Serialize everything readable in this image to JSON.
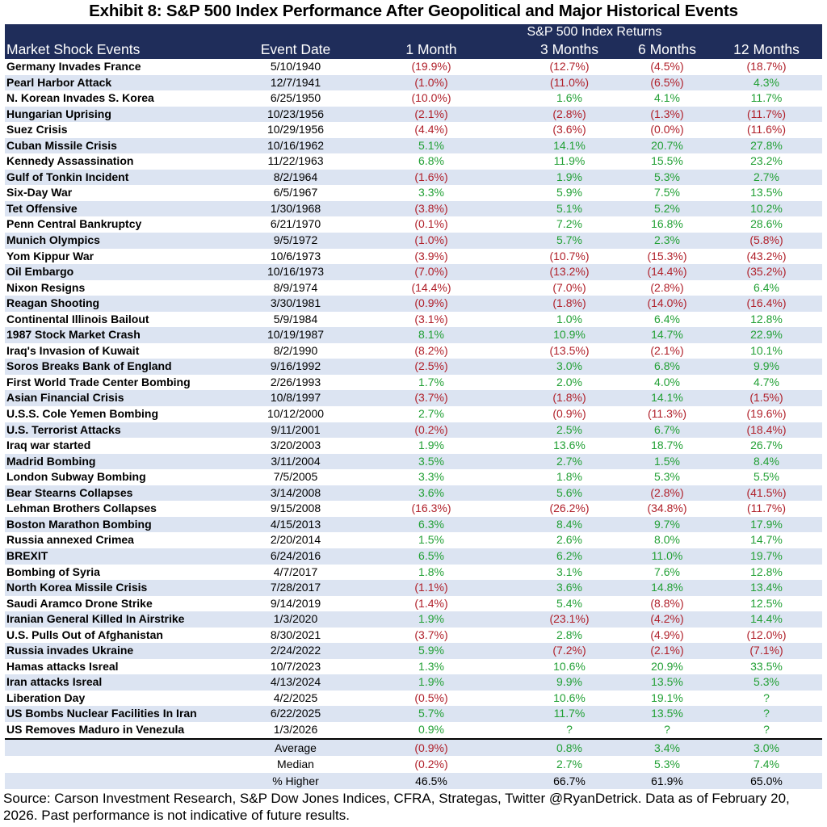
{
  "title": "Exhibit 8: S&P 500 Index Performance After Geopolitical and Major Historical Events",
  "header": {
    "group_label": "S&P 500 Index Returns",
    "columns": [
      "Market Shock Events",
      "Event Date",
      "1 Month",
      "3 Months",
      "6 Months",
      "12 Months"
    ]
  },
  "chart_data": {
    "type": "table",
    "title": "Exhibit 8: S&P 500 Index Performance After Geopolitical and Major Historical Events",
    "columns": [
      "Market Shock Events",
      "Event Date",
      "1 Month",
      "3 Months",
      "6 Months",
      "12 Months"
    ],
    "rows": [
      [
        "Germany Invades France",
        "5/10/1940",
        "(19.9%)",
        "(12.7%)",
        "(4.5%)",
        "(18.7%)"
      ],
      [
        "Pearl Harbor Attack",
        "12/7/1941",
        "(1.0%)",
        "(11.0%)",
        "(6.5%)",
        "4.3%"
      ],
      [
        "N. Korean Invades S. Korea",
        "6/25/1950",
        "(10.0%)",
        "1.6%",
        "4.1%",
        "11.7%"
      ],
      [
        "Hungarian Uprising",
        "10/23/1956",
        "(2.1%)",
        "(2.8%)",
        "(1.3%)",
        "(11.7%)"
      ],
      [
        "Suez Crisis",
        "10/29/1956",
        "(4.4%)",
        "(3.6%)",
        "(0.0%)",
        "(11.6%)"
      ],
      [
        "Cuban Missile Crisis",
        "10/16/1962",
        "5.1%",
        "14.1%",
        "20.7%",
        "27.8%"
      ],
      [
        "Kennedy Assassination",
        "11/22/1963",
        "6.8%",
        "11.9%",
        "15.5%",
        "23.2%"
      ],
      [
        "Gulf of Tonkin Incident",
        "8/2/1964",
        "(1.6%)",
        "1.9%",
        "5.3%",
        "2.7%"
      ],
      [
        "Six-Day War",
        "6/5/1967",
        "3.3%",
        "5.9%",
        "7.5%",
        "13.5%"
      ],
      [
        "Tet Offensive",
        "1/30/1968",
        "(3.8%)",
        "5.1%",
        "5.2%",
        "10.2%"
      ],
      [
        "Penn Central Bankruptcy",
        "6/21/1970",
        "(0.1%)",
        "7.2%",
        "16.8%",
        "28.6%"
      ],
      [
        "Munich Olympics",
        "9/5/1972",
        "(1.0%)",
        "5.7%",
        "2.3%",
        "(5.8%)"
      ],
      [
        "Yom Kippur War",
        "10/6/1973",
        "(3.9%)",
        "(10.7%)",
        "(15.3%)",
        "(43.2%)"
      ],
      [
        "Oil Embargo",
        "10/16/1973",
        "(7.0%)",
        "(13.2%)",
        "(14.4%)",
        "(35.2%)"
      ],
      [
        "Nixon Resigns",
        "8/9/1974",
        "(14.4%)",
        "(7.0%)",
        "(2.8%)",
        "6.4%"
      ],
      [
        "Reagan Shooting",
        "3/30/1981",
        "(0.9%)",
        "(1.8%)",
        "(14.0%)",
        "(16.4%)"
      ],
      [
        "Continental Illinois Bailout",
        "5/9/1984",
        "(3.1%)",
        "1.0%",
        "6.4%",
        "12.8%"
      ],
      [
        "1987 Stock Market Crash",
        "10/19/1987",
        "8.1%",
        "10.9%",
        "14.7%",
        "22.9%"
      ],
      [
        "Iraq's Invasion of Kuwait",
        "8/2/1990",
        "(8.2%)",
        "(13.5%)",
        "(2.1%)",
        "10.1%"
      ],
      [
        "Soros Breaks Bank of England",
        "9/16/1992",
        "(2.5%)",
        "3.0%",
        "6.8%",
        "9.9%"
      ],
      [
        "First World Trade Center Bombing",
        "2/26/1993",
        "1.7%",
        "2.0%",
        "4.0%",
        "4.7%"
      ],
      [
        "Asian Financial Crisis",
        "10/8/1997",
        "(3.7%)",
        "(1.8%)",
        "14.1%",
        "(1.5%)"
      ],
      [
        "U.S.S. Cole Yemen Bombing",
        "10/12/2000",
        "2.7%",
        "(0.9%)",
        "(11.3%)",
        "(19.6%)"
      ],
      [
        "U.S. Terrorist Attacks",
        "9/11/2001",
        "(0.2%)",
        "2.5%",
        "6.7%",
        "(18.4%)"
      ],
      [
        "Iraq war started",
        "3/20/2003",
        "1.9%",
        "13.6%",
        "18.7%",
        "26.7%"
      ],
      [
        "Madrid Bombing",
        "3/11/2004",
        "3.5%",
        "2.7%",
        "1.5%",
        "8.4%"
      ],
      [
        "London Subway Bombing",
        "7/5/2005",
        "3.3%",
        "1.8%",
        "5.3%",
        "5.5%"
      ],
      [
        "Bear Stearns Collapses",
        "3/14/2008",
        "3.6%",
        "5.6%",
        "(2.8%)",
        "(41.5%)"
      ],
      [
        "Lehman Brothers Collapses",
        "9/15/2008",
        "(16.3%)",
        "(26.2%)",
        "(34.8%)",
        "(11.7%)"
      ],
      [
        "Boston Marathon Bombing",
        "4/15/2013",
        "6.3%",
        "8.4%",
        "9.7%",
        "17.9%"
      ],
      [
        "Russia annexed Crimea",
        "2/20/2014",
        "1.5%",
        "2.6%",
        "8.0%",
        "14.7%"
      ],
      [
        "BREXIT",
        "6/24/2016",
        "6.5%",
        "6.2%",
        "11.0%",
        "19.7%"
      ],
      [
        "Bombing of Syria",
        "4/7/2017",
        "1.8%",
        "3.1%",
        "7.6%",
        "12.8%"
      ],
      [
        "North Korea Missile Crisis",
        "7/28/2017",
        "(1.1%)",
        "3.6%",
        "14.8%",
        "13.4%"
      ],
      [
        "Saudi Aramco Drone Strike",
        "9/14/2019",
        "(1.4%)",
        "5.4%",
        "(8.8%)",
        "12.5%"
      ],
      [
        "Iranian General Killed In Airstrike",
        "1/3/2020",
        "1.9%",
        "(23.1%)",
        "(4.2%)",
        "14.4%"
      ],
      [
        "U.S. Pulls Out of Afghanistan",
        "8/30/2021",
        "(3.7%)",
        "2.8%",
        "(4.9%)",
        "(12.0%)"
      ],
      [
        "Russia invades Ukraine",
        "2/24/2022",
        "5.9%",
        "(7.2%)",
        "(2.1%)",
        "(7.1%)"
      ],
      [
        "Hamas attacks Isreal",
        "10/7/2023",
        "1.3%",
        "10.6%",
        "20.9%",
        "33.5%"
      ],
      [
        "Iran attacks Isreal",
        "4/13/2024",
        "1.9%",
        "9.9%",
        "13.5%",
        "5.3%"
      ],
      [
        "Liberation Day",
        "4/2/2025",
        "(0.5%)",
        "10.6%",
        "19.1%",
        "?"
      ],
      [
        "US Bombs Nuclear Facilities In Iran",
        "6/22/2025",
        "5.7%",
        "11.7%",
        "13.5%",
        "?"
      ],
      [
        "US Removes Maduro in Venezula",
        "1/3/2026",
        "0.9%",
        "?",
        "?",
        "?"
      ]
    ],
    "summary": [
      {
        "label": "Average",
        "values": [
          "(0.9%)",
          "0.8%",
          "3.4%",
          "3.0%"
        ]
      },
      {
        "label": "Median",
        "values": [
          "(0.2%)",
          "2.7%",
          "5.3%",
          "7.4%"
        ]
      },
      {
        "label": "% Higher",
        "values": [
          "46.5%",
          "66.7%",
          "61.9%",
          "65.0%"
        ]
      }
    ],
    "colors": {
      "header_bg": "#1f2d5a",
      "band": "#dce4f2",
      "negative": "#b0202a",
      "positive": "#22a035"
    }
  },
  "source": "Source: Carson Investment Research, S&P Dow Jones Indices, CFRA, Strategas, Twitter @RyanDetrick. Data as of February 20, 2026. Past performance is not indicative of future results."
}
